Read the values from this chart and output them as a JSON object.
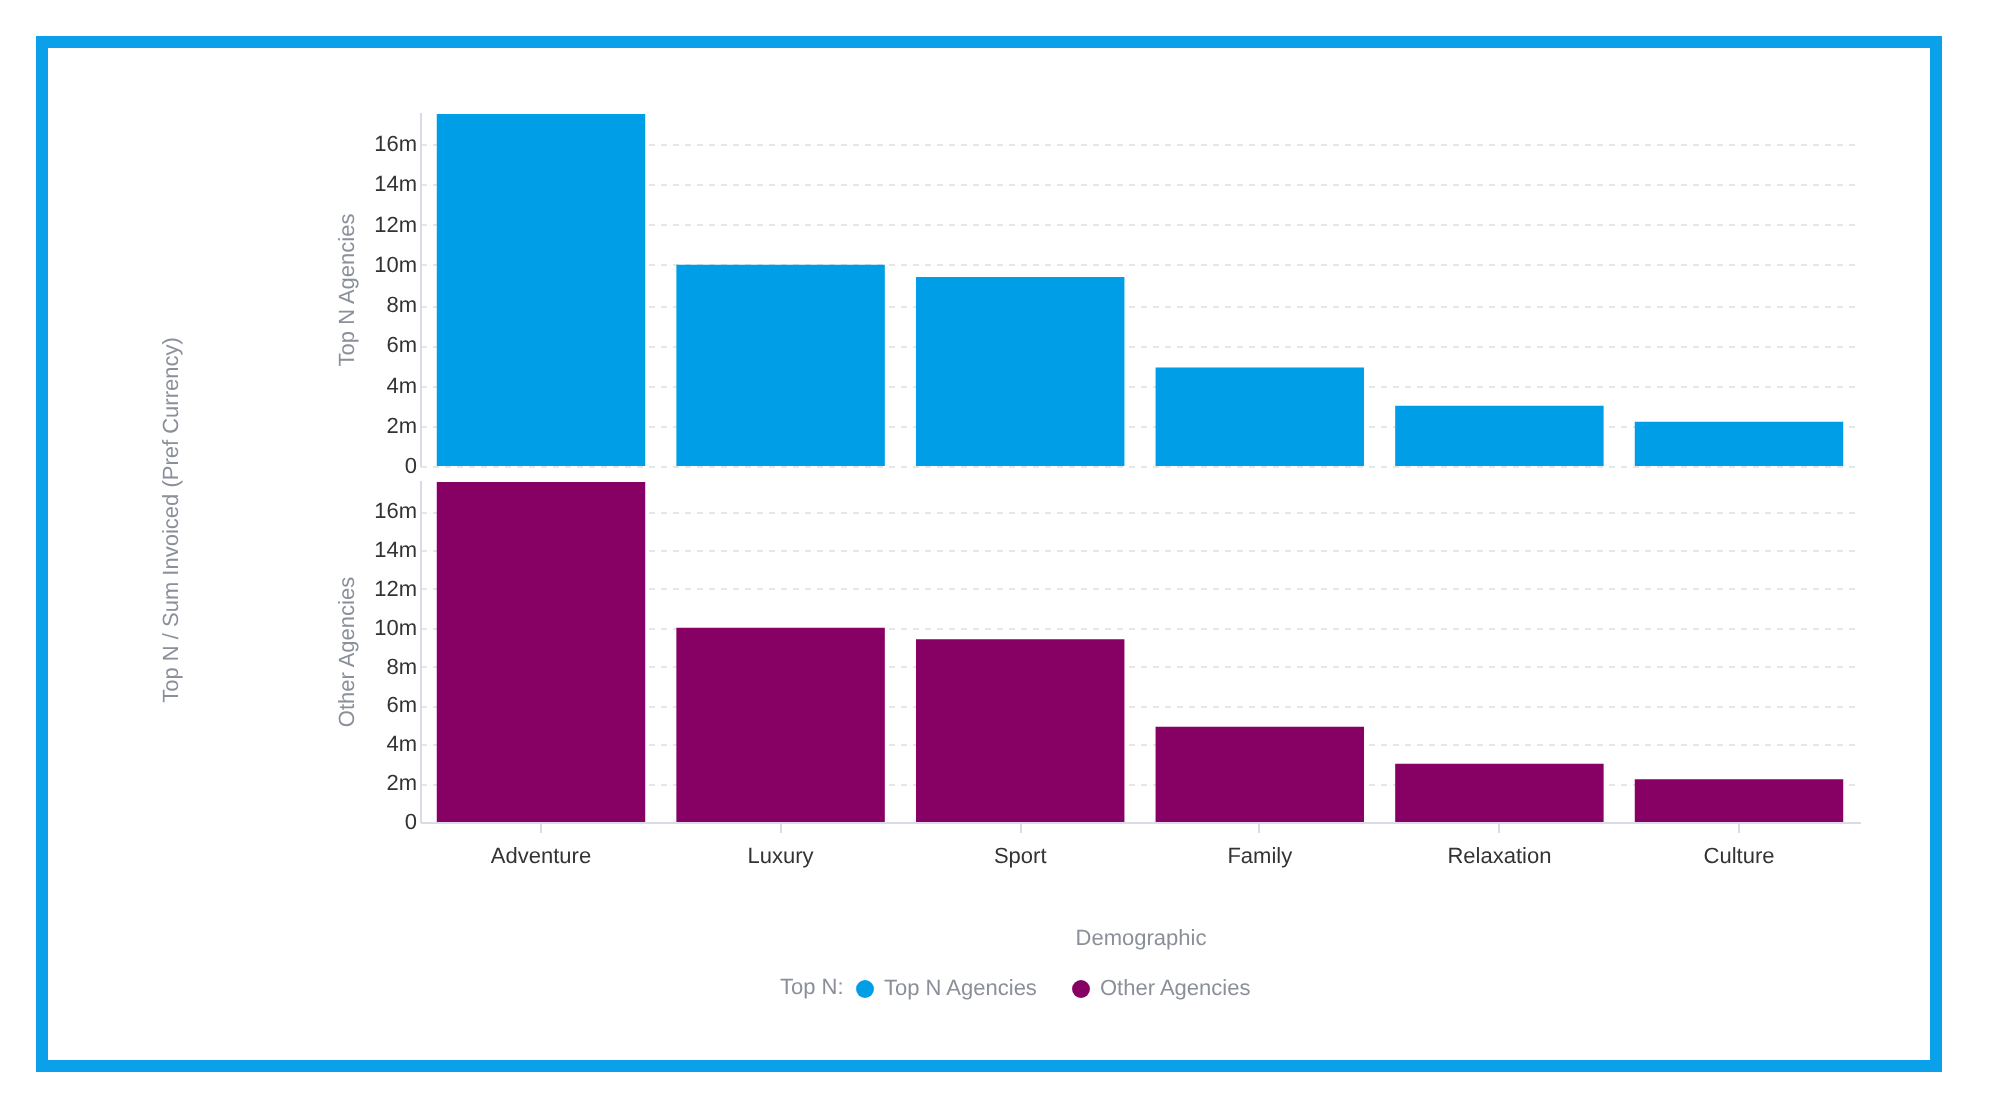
{
  "chart_data": [
    {
      "type": "bar",
      "ylabel": "Top N / Sum Invoiced (Pref Currency)",
      "grid": "y",
      "tick_labels": "y",
      "legend_title": "Top N:",
      "legend": "bottom",
      "categories": [
        null,
        null,
        null,
        null,
        null,
        null
      ],
      "ylim": [
        0,
        17.6
      ],
      "yticks": [
        {
          "value": 0,
          "label": "0"
        },
        {
          "value": 2,
          "label": "2m"
        },
        {
          "value": 4,
          "label": "4m"
        },
        {
          "value": 6,
          "label": "6m"
        },
        {
          "value": 8,
          "label": "8m"
        },
        {
          "value": 10,
          "label": "10m"
        },
        {
          "value": 12,
          "label": "12m"
        },
        {
          "value": 14,
          "label": "14m"
        },
        {
          "value": 16,
          "label": "16m"
        }
      ],
      "series": [
        {
          "name": "Top N Agencies",
          "color": "#009ee6",
          "values": [
            17.5,
            10.0,
            9.4,
            4.9,
            3.0,
            2.2
          ]
        }
      ]
    },
    {
      "type": "bar",
      "xlabel": "Demographic",
      "legend": "bottom",
      "grid": "y",
      "categories": [
        "Adventure",
        "Luxury",
        "Sport",
        "Family",
        "Relaxation",
        "Culture"
      ],
      "ylim": [
        0,
        17.6
      ],
      "yticks": [
        {
          "value": 0,
          "label": "0"
        },
        {
          "value": 2,
          "label": "2m"
        },
        {
          "value": 4,
          "label": "4m"
        },
        {
          "value": 6,
          "label": "6m"
        },
        {
          "value": 8,
          "label": "8m"
        },
        {
          "value": 10,
          "label": "10m"
        },
        {
          "value": 12,
          "label": "12m"
        },
        {
          "value": 14,
          "label": "14m"
        },
        {
          "value": 16,
          "label": "16m"
        }
      ],
      "series": [
        {
          "name": "Other Agencies",
          "color": "#870064",
          "values": [
            17.5,
            10.0,
            9.4,
            4.9,
            3.0,
            2.2
          ]
        }
      ]
    }
  ]
}
